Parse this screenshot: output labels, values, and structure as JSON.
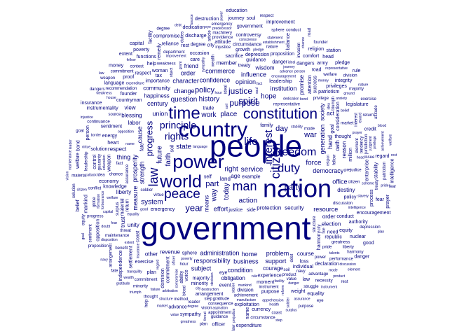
{
  "colors": {
    "background": "#ffffff",
    "word": "#00007f"
  },
  "words": [
    {
      "text": "government",
      "weight": 100
    },
    {
      "text": "people",
      "weight": 80
    },
    {
      "text": "nation",
      "weight": 66
    },
    {
      "text": "country",
      "weight": 52
    },
    {
      "text": "power",
      "weight": 46
    },
    {
      "text": "world",
      "weight": 44
    },
    {
      "text": "time",
      "weight": 42
    },
    {
      "text": "constitution",
      "weight": 36
    },
    {
      "text": "peace",
      "weight": 32
    },
    {
      "text": "citizen",
      "weight": 30
    },
    {
      "text": "law",
      "weight": 30
    },
    {
      "text": "man",
      "weight": 29
    },
    {
      "text": "duty",
      "weight": 28
    },
    {
      "text": "freedom",
      "weight": 27
    },
    {
      "text": "life",
      "weight": 24
    },
    {
      "text": "interest",
      "weight": 24
    },
    {
      "text": "rights",
      "weight": 21
    },
    {
      "text": "principle",
      "weight": 20
    },
    {
      "text": "year",
      "weight": 20
    },
    {
      "text": "spirit",
      "weight": 19
    },
    {
      "text": "progress",
      "weight": 19
    },
    {
      "text": "justice",
      "weight": 18
    },
    {
      "text": "purpose",
      "weight": 18
    },
    {
      "text": "party",
      "weight": 17
    },
    {
      "text": "day",
      "weight": 17
    },
    {
      "text": "policy",
      "weight": 17
    },
    {
      "text": "war",
      "weight": 17
    },
    {
      "text": "today",
      "weight": 15
    },
    {
      "text": "right",
      "weight": 15
    },
    {
      "text": "part",
      "weight": 16
    },
    {
      "text": "service",
      "weight": 15
    },
    {
      "text": "action",
      "weight": 15
    },
    {
      "text": "way",
      "weight": 15
    },
    {
      "text": "state",
      "weight": 15
    },
    {
      "text": "place",
      "weight": 14
    },
    {
      "text": "work",
      "weight": 15
    },
    {
      "text": "history",
      "weight": 13
    },
    {
      "text": "faith",
      "weight": 13
    },
    {
      "text": "force",
      "weight": 13
    },
    {
      "text": "system",
      "weight": 14
    },
    {
      "text": "hope",
      "weight": 13
    },
    {
      "text": "question",
      "weight": 13
    },
    {
      "text": "future",
      "weight": 13
    },
    {
      "text": "effort",
      "weight": 12
    },
    {
      "text": "administration",
      "weight": 12
    },
    {
      "text": "opinion",
      "weight": 12
    },
    {
      "text": "confidence",
      "weight": 12
    },
    {
      "text": "strength",
      "weight": 12
    },
    {
      "text": "democracy",
      "weight": 12
    },
    {
      "text": "business",
      "weight": 12
    },
    {
      "text": "responsibility",
      "weight": 12
    },
    {
      "text": "institution",
      "weight": 12
    },
    {
      "text": "prosperity",
      "weight": 12
    },
    {
      "text": "problem",
      "weight": 11
    },
    {
      "text": "century",
      "weight": 11
    },
    {
      "text": "influence",
      "weight": 11
    },
    {
      "text": "character",
      "weight": 11
    },
    {
      "text": "generation",
      "weight": 11
    },
    {
      "text": "commerce",
      "weight": 11
    },
    {
      "text": "home",
      "weight": 11
    },
    {
      "text": "change",
      "weight": 11
    },
    {
      "text": "union",
      "weight": 11
    },
    {
      "text": "cause",
      "weight": 11
    },
    {
      "text": "resource",
      "weight": 11
    },
    {
      "text": "support",
      "weight": 11
    },
    {
      "text": "protection",
      "weight": 10
    },
    {
      "text": "condition",
      "weight": 11
    },
    {
      "text": "measure",
      "weight": 11
    },
    {
      "text": "security",
      "weight": 10
    },
    {
      "text": "revenue",
      "weight": 10
    },
    {
      "text": "happiness",
      "weight": 10
    },
    {
      "text": "subject",
      "weight": 11
    },
    {
      "text": "hand",
      "weight": 12
    },
    {
      "text": "thing",
      "weight": 11
    },
    {
      "text": "order",
      "weight": 11
    },
    {
      "text": "office",
      "weight": 11
    },
    {
      "text": "land",
      "weight": 10
    },
    {
      "text": "means",
      "weight": 10
    },
    {
      "text": "labor",
      "weight": 10
    },
    {
      "text": "order",
      "weight": 10
    },
    {
      "text": "member",
      "weight": 10
    },
    {
      "text": "liberty",
      "weight": 10
    },
    {
      "text": "society",
      "weight": 9
    },
    {
      "text": "wisdom",
      "weight": 9
    },
    {
      "text": "courage",
      "weight": 9
    },
    {
      "text": "community",
      "weight": 9
    },
    {
      "text": "obligation",
      "weight": 9
    },
    {
      "text": "oath",
      "weight": 9
    },
    {
      "text": "age",
      "weight": 10
    },
    {
      "text": "blessing",
      "weight": 9
    },
    {
      "text": "unity",
      "weight": 9
    },
    {
      "text": "friend",
      "weight": 9
    },
    {
      "text": "promise",
      "weight": 9
    },
    {
      "text": "election",
      "weight": 9
    },
    {
      "text": "course",
      "weight": 10
    },
    {
      "text": "act",
      "weight": 9
    },
    {
      "text": "respect",
      "weight": 9
    },
    {
      "text": "reason",
      "weight": 9
    },
    {
      "text": "destiny",
      "weight": 9
    },
    {
      "text": "example",
      "weight": 8
    },
    {
      "text": "experience",
      "weight": 8
    },
    {
      "text": "knowledge",
      "weight": 8
    },
    {
      "text": "attention",
      "weight": 8
    },
    {
      "text": "importance",
      "weight": 8
    },
    {
      "text": "justice",
      "weight": 8
    },
    {
      "text": "self",
      "weight": 8
    },
    {
      "text": "family",
      "weight": 8
    },
    {
      "text": "voice",
      "weight": 8
    },
    {
      "text": "sacrifice",
      "weight": 8
    },
    {
      "text": "other",
      "weight": 9
    },
    {
      "text": "view",
      "weight": 9
    },
    {
      "text": "side",
      "weight": 8
    },
    {
      "text": "consideration",
      "weight": 8
    },
    {
      "text": "trade",
      "weight": 7
    },
    {
      "text": "care",
      "weight": 7
    },
    {
      "text": "need",
      "weight": 7
    },
    {
      "text": "loss",
      "weight": 7
    },
    {
      "text": "trust",
      "weight": 9
    },
    {
      "text": "event",
      "weight": 7
    },
    {
      "text": "heart",
      "weight": 7
    },
    {
      "text": "tax",
      "weight": 7
    },
    {
      "text": "danger",
      "weight": 8
    },
    {
      "text": "million",
      "weight": 8
    },
    {
      "text": "policy",
      "weight": 8
    },
    {
      "text": "moment",
      "weight": 8
    },
    {
      "text": "economy",
      "weight": 8
    },
    {
      "text": "republic",
      "weight": 8
    },
    {
      "text": "success",
      "weight": 8
    },
    {
      "text": "individual",
      "weight": 8
    },
    {
      "text": "countryman",
      "weight": 8
    },
    {
      "text": "woman",
      "weight": 7
    },
    {
      "text": "occasion",
      "weight": 7
    },
    {
      "text": "ability",
      "weight": 7
    },
    {
      "text": "growth",
      "weight": 7
    },
    {
      "text": "energy",
      "weight": 7
    }
  ],
  "small_words": [
    "language",
    "structure",
    "emergency",
    "stability",
    "representative",
    "commitment",
    "dedication",
    "soldier",
    "sphere",
    "religion",
    "mode",
    "leadership",
    "encouragement",
    "assurance",
    "guidance",
    "name",
    "hour",
    "return",
    "advance",
    "chance",
    "minority",
    "compromise",
    "weakness",
    "arrangement",
    "head",
    "fellow",
    "majority",
    "opposition",
    "virtue",
    "harmony",
    "poverty",
    "privilege",
    "depression",
    "sympathy",
    "discussion",
    "treaty",
    "equality",
    "wealth",
    "thought",
    "mankind",
    "fact",
    "coast",
    "journey",
    "prejudice",
    "division",
    "regard",
    "citizen",
    "city",
    "fear",
    "ideal",
    "circumstance",
    "person",
    "product",
    "material",
    "destruction",
    "threat",
    "conduct",
    "soul",
    "instrument",
    "patriotism",
    "improvement",
    "surplus",
    "proposition",
    "welfare",
    "injustice",
    "weapon",
    "pledge",
    "achievement",
    "exercise",
    "insurance",
    "market",
    "sentiment",
    "money",
    "debt",
    "founder",
    "facility",
    "pride",
    "soil",
    "good",
    "power",
    "purpose",
    "officer",
    "value",
    "attitude",
    "expenditure",
    "triumph",
    "dangers",
    "bond",
    "navy",
    "goal",
    "extent",
    "source",
    "degree",
    "station",
    "nature",
    "equity",
    "danger",
    "blood",
    "plan",
    "belief",
    "gratitude",
    "fate",
    "capital",
    "idea",
    "respect",
    "education",
    "department",
    "road",
    "conscience",
    "element",
    "eye",
    "intelligence",
    "greatness",
    "dominion",
    "manufacture",
    "maintenance",
    "privileges",
    "forbearance",
    "providence",
    "solution",
    "anxiety",
    "guaranty",
    "declaration",
    "prayer",
    "consequence",
    "settlement",
    "establishment",
    "recommendation",
    "controversy",
    "decision",
    "advantage",
    "help",
    "talents",
    "tendency",
    "exploitation",
    "arbitration",
    "machinery",
    "enterprise",
    "rule",
    "welfare",
    "rest",
    "reform",
    "step",
    "law",
    "slavery",
    "interest",
    "authority",
    "apprehension",
    "benefit",
    "control",
    "scheme",
    "leader",
    "discharge",
    "formation",
    "conflict",
    "comfort",
    "statement",
    "invasion",
    "weight",
    "aspiration",
    "commitment",
    "remedy",
    "doubt",
    "method",
    "proof",
    "grant",
    "contest",
    "reliance",
    "border",
    "article",
    "army",
    "ground",
    "liberty",
    "balance",
    "tranquility",
    "vision",
    "legislature",
    "object",
    "issue",
    "functions",
    "attack",
    "jurisdiction",
    "instrumentality",
    "disposition",
    "continuance",
    "independence",
    "predecessor",
    "performance",
    "integrity",
    "reward",
    "struggle",
    "nuclear",
    "house",
    "globe",
    "currency",
    "health",
    "appointment",
    "process",
    "degree",
    "progress",
    "government",
    "judgment",
    "necessity",
    "credit",
    "failure",
    "duties"
  ]
}
